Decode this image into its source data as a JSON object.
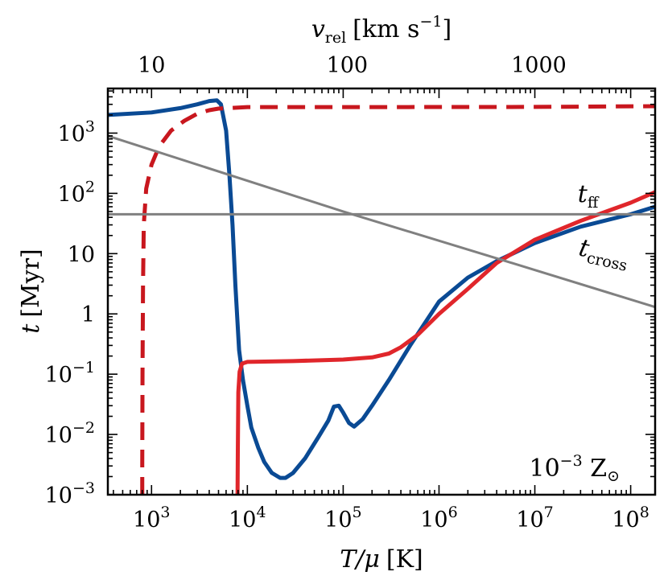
{
  "chart_data": {
    "type": "line",
    "xscale": "log",
    "yscale": "log",
    "xlim": [
      350,
      180000000
    ],
    "ylim": [
      0.001,
      5500
    ],
    "grid": false,
    "legend": "none",
    "xlabel": {
      "var": "T/μ",
      "unit": "[K]"
    },
    "ylabel": {
      "var": "t",
      "unit": "[Myr]"
    },
    "top_xlabel": {
      "var": "v",
      "sub": "rel",
      "unit_pre": "[km s",
      "unit_sup": "−1",
      "unit_post": "]"
    },
    "annotation": {
      "base": "10",
      "exp": "−3",
      "tail": " Z",
      "sym": "⊙"
    },
    "x_ticks": [
      {
        "value": 1000,
        "base": "10",
        "exp": "3"
      },
      {
        "value": 10000,
        "base": "10",
        "exp": "4"
      },
      {
        "value": 100000,
        "base": "10",
        "exp": "5"
      },
      {
        "value": 1000000,
        "base": "10",
        "exp": "6"
      },
      {
        "value": 10000000,
        "base": "10",
        "exp": "7"
      },
      {
        "value": 100000000,
        "base": "10",
        "exp": "8"
      }
    ],
    "y_ticks": [
      {
        "value": 0.001,
        "base": "10",
        "exp": "−3"
      },
      {
        "value": 0.01,
        "base": "10",
        "exp": "−2"
      },
      {
        "value": 0.1,
        "base": "10",
        "exp": "−1"
      },
      {
        "value": 1,
        "base": "1",
        "exp": ""
      },
      {
        "value": 10,
        "base": "10",
        "exp": ""
      },
      {
        "value": 100,
        "base": "10",
        "exp": "2"
      },
      {
        "value": 1000,
        "base": "10",
        "exp": "3"
      }
    ],
    "top_ticks": [
      {
        "label": "10",
        "x_value": 1000
      },
      {
        "label": "100",
        "x_value": 110000
      },
      {
        "label": "1000",
        "x_value": 11000000
      }
    ],
    "series": [
      {
        "color": "#0a4a94",
        "style": "solid",
        "points": [
          [
            350,
            2000
          ],
          [
            1000,
            2200
          ],
          [
            2000,
            2600
          ],
          [
            3000,
            3000
          ],
          [
            4000,
            3400
          ],
          [
            4800,
            3500
          ],
          [
            5300,
            3000
          ],
          [
            6000,
            1100
          ],
          [
            6500,
            200
          ],
          [
            7000,
            30
          ],
          [
            7500,
            3
          ],
          [
            8200,
            0.25
          ],
          [
            9000,
            0.08
          ],
          [
            10000,
            0.03
          ],
          [
            11000,
            0.013
          ],
          [
            13000,
            0.006
          ],
          [
            15000,
            0.0035
          ],
          [
            18000,
            0.0023
          ],
          [
            22000,
            0.0019
          ],
          [
            25000,
            0.0019
          ],
          [
            30000,
            0.0023
          ],
          [
            40000,
            0.004
          ],
          [
            55000,
            0.009
          ],
          [
            70000,
            0.017
          ],
          [
            80000,
            0.029
          ],
          [
            90000,
            0.03
          ],
          [
            100000,
            0.023
          ],
          [
            115000,
            0.0155
          ],
          [
            130000,
            0.0135
          ],
          [
            160000,
            0.018
          ],
          [
            200000,
            0.03
          ],
          [
            300000,
            0.08
          ],
          [
            500000,
            0.3
          ],
          [
            1000000,
            1.6
          ],
          [
            2000000,
            4
          ],
          [
            4000000,
            7.5
          ],
          [
            10000000,
            15
          ],
          [
            30000000,
            28
          ],
          [
            100000000,
            45
          ],
          [
            180000000,
            60
          ]
        ]
      },
      {
        "color": "#c8171e",
        "style": "dashed",
        "points": [
          [
            800,
            0.001
          ],
          [
            800,
            0.003
          ],
          [
            805,
            0.1
          ],
          [
            815,
            3
          ],
          [
            830,
            30
          ],
          [
            880,
            120
          ],
          [
            1000,
            300
          ],
          [
            1200,
            600
          ],
          [
            1600,
            1100
          ],
          [
            2200,
            1600
          ],
          [
            3000,
            2100
          ],
          [
            4000,
            2400
          ],
          [
            5000,
            2550
          ],
          [
            10000,
            2700
          ],
          [
            100000,
            2700
          ],
          [
            10000000,
            2720
          ],
          [
            180000000,
            2800
          ]
        ]
      },
      {
        "color": "#e0262b",
        "style": "solid",
        "points": [
          [
            7900,
            0.001
          ],
          [
            7950,
            0.005
          ],
          [
            8050,
            0.05
          ],
          [
            8300,
            0.11
          ],
          [
            8800,
            0.15
          ],
          [
            10000,
            0.16
          ],
          [
            30000,
            0.165
          ],
          [
            100000,
            0.175
          ],
          [
            200000,
            0.19
          ],
          [
            300000,
            0.22
          ],
          [
            400000,
            0.28
          ],
          [
            600000,
            0.45
          ],
          [
            1000000,
            1.0
          ],
          [
            2000000,
            2.6
          ],
          [
            4000000,
            7
          ],
          [
            10000000,
            17
          ],
          [
            30000000,
            35
          ],
          [
            100000000,
            70
          ],
          [
            180000000,
            105
          ]
        ]
      },
      {
        "name": "t_ff",
        "color": "#808080",
        "style": "solid",
        "points": [
          [
            350,
            45
          ],
          [
            180000000,
            45
          ]
        ]
      },
      {
        "name": "t_cross",
        "color": "#808080",
        "style": "solid",
        "points": [
          [
            350,
            900
          ],
          [
            100000,
            50
          ],
          [
            5000000,
            7.5
          ],
          [
            180000000,
            1.3
          ]
        ]
      }
    ],
    "line_labels": [
      {
        "var": "t",
        "sub": "ff",
        "x_value": 28000000,
        "y_value": 72
      },
      {
        "var": "t",
        "sub": "cross",
        "x_value": 28000000,
        "y_value": 9.5
      }
    ]
  }
}
